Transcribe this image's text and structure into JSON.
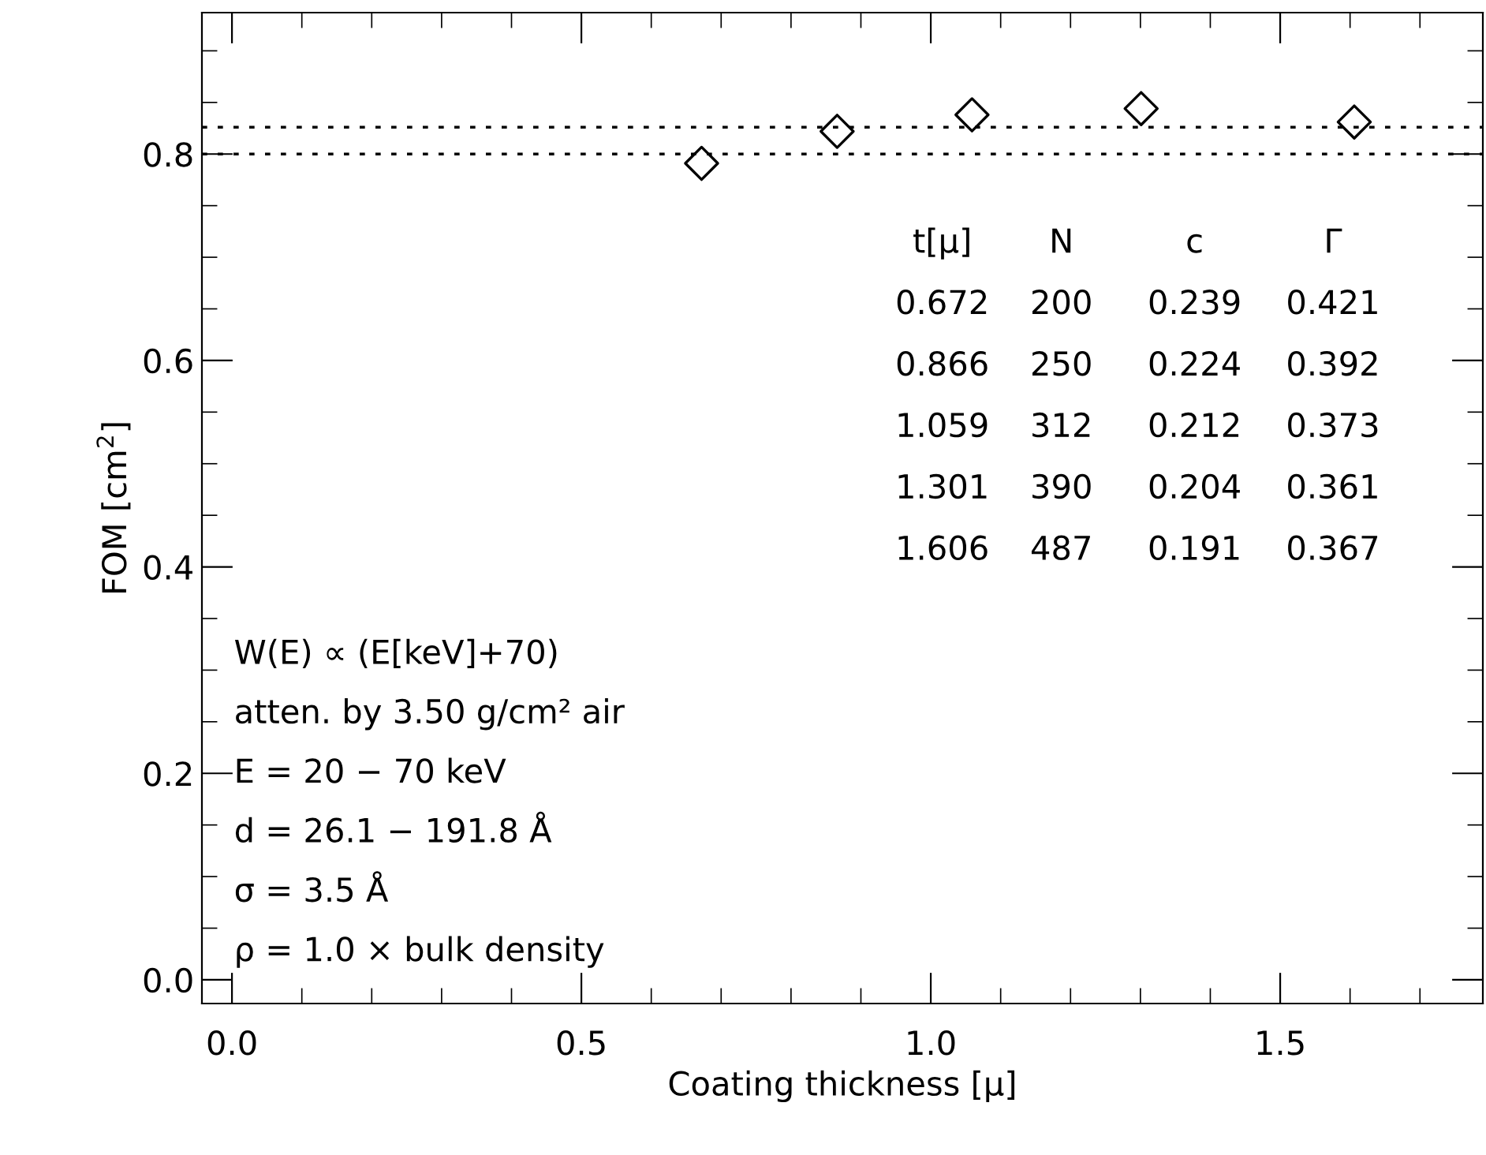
{
  "chart_data": {
    "type": "scatter",
    "xlabel": "Coating thickness [μ]",
    "ylabel": "FOM [cm$^{2}$]",
    "x": [
      0.672,
      0.866,
      1.059,
      1.301,
      1.606
    ],
    "series": [
      {
        "color": "#000000",
        "values": [
          0.791,
          0.822,
          0.838,
          0.844,
          0.831
        ]
      }
    ],
    "marker": "diamond",
    "xlim": [
      -0.043,
      1.79
    ],
    "ylim": [
      -0.023,
      0.937
    ],
    "xticks": [
      {
        "value": 0.0,
        "label": "0.0"
      },
      {
        "value": 0.5,
        "label": "0.5"
      },
      {
        "value": 1.0,
        "label": "1.0"
      },
      {
        "value": 1.5,
        "label": "1.5"
      }
    ],
    "yticks": [
      {
        "value": 0.0,
        "label": "0.0"
      },
      0.2,
      0.4,
      0.6,
      0.8
    ],
    "ref_lines": [
      {
        "axis": "y",
        "value": 0.8,
        "line_style": "dotted",
        "color": "#000000"
      },
      {
        "axis": "y",
        "value": 0.826,
        "line_style": "dotted",
        "color": "#000000"
      }
    ],
    "annotations": [
      "t[μ]   N      c      Γ",
      "0.672  200  0.239  0.421",
      "0.866  250  0.224  0.392",
      "1.059  312  0.212  0.373",
      "1.301  390  0.204  0.361",
      "1.606  487  0.191  0.367",
      "W(E) ∝ (E[keV]+70)",
      "atten. by 3.50 g/cm² air",
      "E = 20 − 70 keV",
      "d = 26.1 − 191.8 Å",
      "σ = 3.5 Å",
      "ρ = 1.0 × bulk density"
    ],
    "grid": false,
    "legend": false
  }
}
